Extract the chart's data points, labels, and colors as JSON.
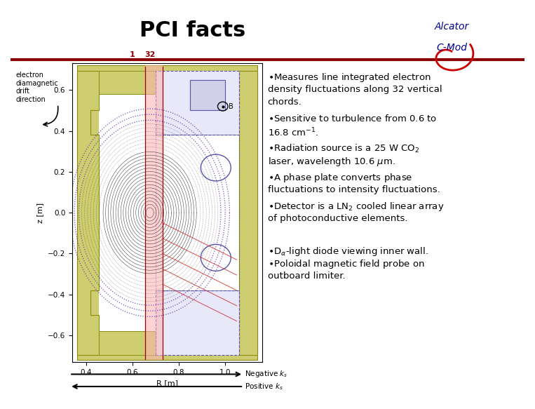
{
  "title": "PCI facts",
  "title_fontsize": 22,
  "title_fontweight": "bold",
  "title_color": "#000000",
  "bg_color": "#ffffff",
  "divider_color": "#8B0000",
  "logo_text1": "Alcator",
  "logo_text2": "C-Mod",
  "logo_color": "#00008B",
  "logo_italic": true,
  "swirl_color": "#CC0000",
  "text_color": "#000000",
  "text_fontsize": 9.5,
  "chord_label_color": "#8B0000",
  "chord_labels": [
    "1",
    "32"
  ],
  "annotation_text": "electron\ndiamagnetic\ndrift\ndirection",
  "neg_k_text": "Negative k",
  "pos_k_text": "Positive k",
  "arrow_color": "#000000"
}
